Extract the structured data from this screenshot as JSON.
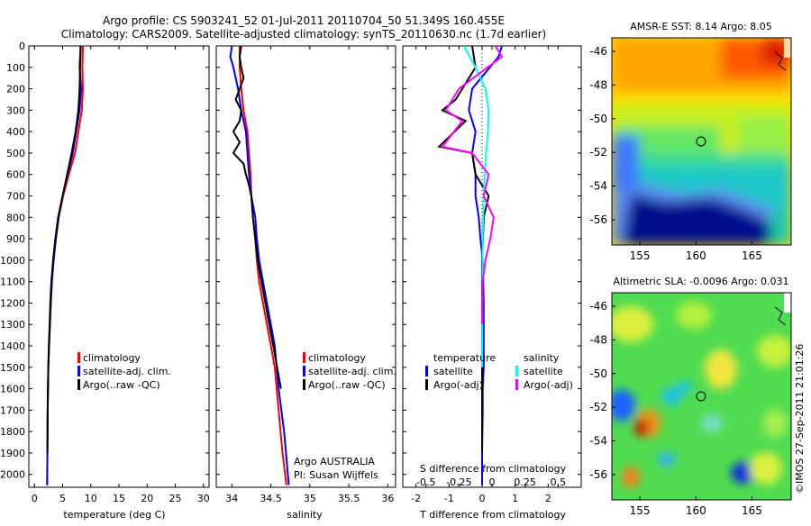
{
  "header": {
    "line1": "Argo profile: CS 5903241_52 01-Jul-2011 20110704_50 51.349S 160.455E",
    "line2": "Climatology: CARS2009. Satellite-adjusted climatology: synTS_20110630.nc (1.7d earlier)"
  },
  "colors": {
    "climatology": "#ff0000",
    "satellite": "#0000ff",
    "argo": "#000000",
    "sal_satellite": "#00ffff",
    "sal_argo": "#ff00ff"
  },
  "depth_axis": {
    "ticks": [
      0,
      100,
      200,
      300,
      400,
      500,
      600,
      700,
      800,
      900,
      1000,
      1100,
      1200,
      1300,
      1400,
      1500,
      1600,
      1700,
      1800,
      1900,
      2000
    ],
    "range": [
      0,
      2060
    ]
  },
  "chart_data": [
    {
      "type": "line",
      "xlabel": "temperature (deg C)",
      "xlim": [
        -1,
        31
      ],
      "xticks": [
        0,
        5,
        10,
        15,
        20,
        25,
        30
      ],
      "ylim": [
        0,
        2060
      ],
      "legend": [
        "climatology",
        "satellite-adj. clim.",
        "Argo(..raw -QC)"
      ],
      "series": [
        {
          "name": "climatology",
          "color_key": "climatology",
          "x": [
            8.6,
            8.5,
            8.6,
            8.4,
            7.8,
            7.2,
            6.1,
            5.1,
            4.3,
            3.8,
            3.4,
            3.1,
            2.9,
            2.75,
            2.6,
            2.45,
            2.35,
            2.3,
            2.25
          ],
          "y": [
            0,
            100,
            200,
            300,
            400,
            500,
            600,
            700,
            800,
            900,
            1000,
            1100,
            1200,
            1300,
            1400,
            1500,
            1700,
            1900,
            2050
          ]
        },
        {
          "name": "satellite-adj. clim.",
          "color_key": "satellite",
          "x": [
            8.2,
            8.0,
            8.3,
            8.0,
            7.4,
            6.8,
            5.9,
            5.0,
            4.3,
            3.8,
            3.4,
            3.1,
            2.9,
            2.75,
            2.6,
            2.45,
            2.35,
            2.3,
            2.25
          ],
          "y": [
            0,
            100,
            200,
            300,
            400,
            500,
            600,
            700,
            800,
            900,
            1000,
            1100,
            1200,
            1300,
            1400,
            1500,
            1700,
            1900,
            2050
          ]
        },
        {
          "name": "Argo(..raw -QC)",
          "color_key": "argo",
          "x": [
            8.2,
            8.1,
            8.0,
            7.8,
            7.3,
            6.6,
            5.8,
            5.0,
            4.2,
            3.7,
            3.3,
            3.0,
            2.8,
            2.7,
            2.55,
            2.45,
            2.35,
            2.3
          ],
          "y": [
            0,
            100,
            200,
            300,
            400,
            500,
            600,
            700,
            800,
            900,
            1000,
            1100,
            1200,
            1300,
            1400,
            1500,
            1700,
            1900
          ]
        }
      ]
    },
    {
      "type": "line",
      "xlabel": "salinity",
      "xlim": [
        33.8,
        36.1
      ],
      "xticks": [
        34,
        34.5,
        35,
        35.5,
        36
      ],
      "ylim": [
        0,
        2060
      ],
      "legend": [
        "climatology",
        "satellite-adj. clim.",
        "Argo(..raw -QC)"
      ],
      "annotation": [
        "Argo AUSTRALIA",
        "PI: Susan Wijffels"
      ],
      "series": [
        {
          "name": "climatology",
          "color_key": "climatology",
          "x": [
            34.1,
            34.1,
            34.12,
            34.15,
            34.2,
            34.22,
            34.24,
            34.25,
            34.27,
            34.3,
            34.32,
            34.35,
            34.4,
            34.45,
            34.5,
            34.55,
            34.6,
            34.65,
            34.7
          ],
          "y": [
            0,
            100,
            200,
            300,
            400,
            500,
            600,
            700,
            800,
            900,
            1000,
            1100,
            1200,
            1300,
            1400,
            1500,
            1700,
            1900,
            2050
          ]
        },
        {
          "name": "satellite-adj. clim.",
          "color_key": "satellite",
          "x": [
            34.0,
            33.98,
            34.02,
            34.08,
            34.12,
            34.18,
            34.2,
            34.22,
            34.25,
            34.3,
            34.32,
            34.35,
            34.4,
            34.45,
            34.5,
            34.55,
            34.6,
            34.67,
            34.73
          ],
          "y": [
            0,
            50,
            100,
            200,
            300,
            400,
            500,
            600,
            700,
            800,
            900,
            1000,
            1100,
            1200,
            1300,
            1400,
            1600,
            1800,
            2050
          ]
        },
        {
          "name": "Argo(..raw -QC)",
          "color_key": "argo",
          "x": [
            34.12,
            34.1,
            34.12,
            34.15,
            34.1,
            34.05,
            34.12,
            34.1,
            34.02,
            34.1,
            34.02,
            34.15,
            34.18,
            34.22,
            34.25,
            34.27,
            34.3,
            34.33,
            34.38,
            34.43,
            34.48,
            34.53,
            34.58,
            34.63
          ],
          "y": [
            0,
            50,
            100,
            150,
            200,
            250,
            300,
            350,
            400,
            450,
            500,
            550,
            600,
            650,
            700,
            800,
            900,
            1000,
            1100,
            1200,
            1300,
            1400,
            1500,
            1600
          ]
        }
      ]
    },
    {
      "type": "line",
      "xlabel": "T difference from climatology",
      "x2label": "S difference from climatology",
      "xlim": [
        -2.4,
        3.0
      ],
      "xticks": [
        -2,
        -1,
        0,
        1,
        2
      ],
      "x2ticks": [
        -0.5,
        -0.25,
        0,
        0.25,
        0.5
      ],
      "ylim": [
        0,
        2060
      ],
      "legend_temperature": {
        "title": "temperature",
        "items": [
          "satellite",
          "Argo(-adj)"
        ]
      },
      "legend_salinity": {
        "title": "salinity",
        "items": [
          "satellite",
          "Argo(-adj)"
        ]
      },
      "series": [
        {
          "name": "T satellite",
          "color_key": "satellite",
          "x": [
            0.6,
            0.5,
            -0.3,
            -0.4,
            -0.2,
            -0.3,
            -0.2,
            -0.2,
            -0.1,
            -0.05,
            0.02,
            0.05,
            0.05,
            0.05,
            0.02,
            0.02,
            0.0,
            0.0
          ],
          "y": [
            0,
            50,
            200,
            300,
            400,
            500,
            600,
            700,
            800,
            900,
            1000,
            1200,
            1400,
            1500,
            1600,
            1700,
            1900,
            2050
          ]
        },
        {
          "name": "T Argo(-adj)",
          "color_key": "argo",
          "x": [
            -0.3,
            -0.2,
            -0.8,
            -1.2,
            -0.5,
            -1.3,
            -0.3,
            -0.2,
            0.2,
            0.05,
            0.0,
            0.0,
            0.0,
            0.0
          ],
          "y": [
            0,
            100,
            250,
            300,
            350,
            470,
            500,
            600,
            700,
            800,
            1000,
            1300,
            1600,
            1900
          ]
        },
        {
          "name": "S satellite",
          "color_key": "sal_satellite",
          "x": [
            -0.55,
            -0.2,
            0.1,
            0.2,
            0.18,
            0.12,
            0.08,
            0.05,
            0.03,
            0.02,
            0.01,
            0.0
          ],
          "y": [
            0,
            100,
            200,
            300,
            400,
            500,
            600,
            700,
            800,
            900,
            1100,
            1500
          ]
        },
        {
          "name": "S Argo(-adj)",
          "color_key": "sal_argo",
          "x": [
            0.4,
            0.6,
            -0.7,
            -1.1,
            -0.6,
            -1.2,
            -0.3,
            0.2,
            0.05,
            0.35,
            0.25,
            0.1,
            0.02,
            0.0
          ],
          "y": [
            0,
            50,
            200,
            300,
            350,
            470,
            500,
            600,
            700,
            800,
            900,
            1000,
            1100,
            1300
          ]
        }
      ]
    },
    {
      "type": "heatmap",
      "title": "AMSR-E SST: 8.14 Argo: 8.05",
      "xticks": [
        155,
        160,
        165
      ],
      "yticks": [
        -46,
        -48,
        -50,
        -52,
        -54,
        -56
      ],
      "xlim": [
        152.5,
        168.5
      ],
      "ylim": [
        -57.5,
        -45.2
      ],
      "marker": {
        "lon": 160.455,
        "lat": -51.349
      }
    },
    {
      "type": "heatmap",
      "title": "Altimetric SLA: -0.0096 Argo: 0.031",
      "xticks": [
        155,
        160,
        165
      ],
      "yticks": [
        -46,
        -48,
        -50,
        -52,
        -54,
        -56
      ],
      "xlim": [
        152.5,
        168.5
      ],
      "ylim": [
        -57.5,
        -45.2
      ],
      "marker": {
        "lon": 160.455,
        "lat": -51.349
      }
    }
  ],
  "side_caption": "©IMOS 27-Sep-2011 21:01:26"
}
